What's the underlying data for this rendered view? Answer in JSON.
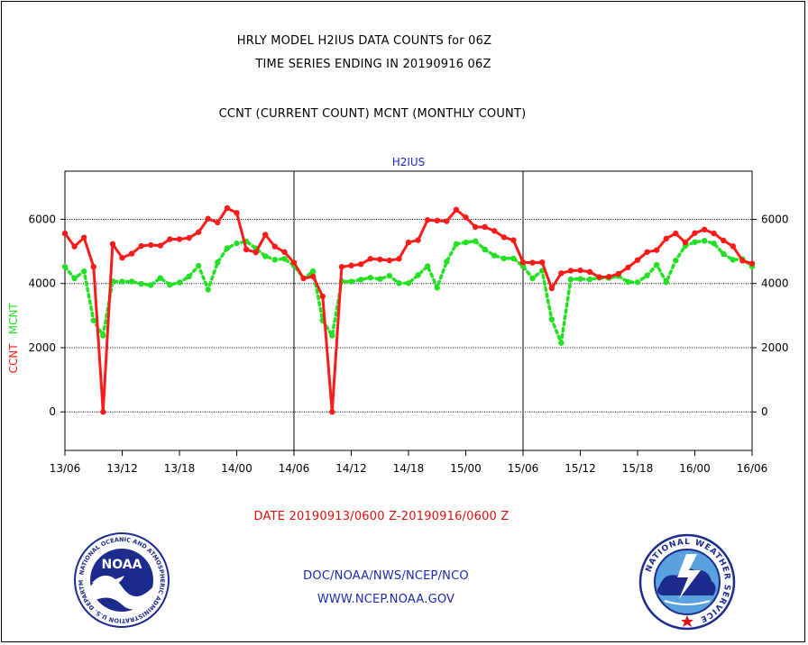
{
  "header": {
    "title": "HRLY MODEL H2IUS DATA COUNTS for 06Z",
    "subtitle": "TIME SERIES ENDING IN 20190916 06Z",
    "legend_text": "CCNT (CURRENT COUNT) MCNT (MONTHLY COUNT)"
  },
  "footer": {
    "date_range": "DATE 20190913/0600 Z-20190916/0600 Z",
    "agency": "DOC/NOAA/NWS/NCEP/NCO",
    "website": "WWW.NCEP.NOAA.GOV"
  },
  "logos": {
    "noaa_label": "NOAA",
    "noaa_ring_text": "NATIONAL OCEANIC AND ATMOSPHERIC ADMINISTRATION U.S. DEPARTMENT OF COMMERCE",
    "nws_ring_text": "NATIONAL WEATHER SERVICE"
  },
  "colors": {
    "ccnt": "#ff1a1a",
    "mcnt": "#22e022",
    "axis": "#000000",
    "title_blue": "#1a2ab8"
  },
  "chart_data": {
    "type": "line",
    "title": "H2IUS",
    "ylabel_ccnt": "CCNT",
    "ylabel_mcnt": "MCNT",
    "xlabel": "",
    "x_tick_labels": [
      "13/06",
      "13/12",
      "13/18",
      "14/00",
      "14/06",
      "14/12",
      "14/18",
      "15/00",
      "15/06",
      "15/12",
      "15/18",
      "16/00",
      "16/06"
    ],
    "y_ticks": [
      0,
      2000,
      4000,
      6000
    ],
    "ylim": [
      -1200,
      7500
    ],
    "x_range_hours": [
      0,
      72
    ],
    "grid": "horizontal",
    "series": [
      {
        "name": "CCNT",
        "style": "solid",
        "values": [
          [
            0,
            5560
          ],
          [
            1,
            5150
          ],
          [
            2,
            5430
          ],
          [
            3,
            4520
          ],
          [
            4,
            0
          ],
          [
            5,
            5230
          ],
          [
            6,
            4800
          ],
          [
            7,
            4930
          ],
          [
            8,
            5170
          ],
          [
            9,
            5200
          ],
          [
            10,
            5180
          ],
          [
            11,
            5380
          ],
          [
            12,
            5380
          ],
          [
            13,
            5420
          ],
          [
            14,
            5600
          ],
          [
            15,
            6020
          ],
          [
            16,
            5900
          ],
          [
            17,
            6350
          ],
          [
            18,
            6200
          ],
          [
            19,
            5060
          ],
          [
            20,
            4970
          ],
          [
            21,
            5520
          ],
          [
            22,
            5150
          ],
          [
            23,
            4980
          ],
          [
            24,
            4650
          ],
          [
            25,
            4160
          ],
          [
            26,
            4220
          ],
          [
            27,
            3600
          ],
          [
            28,
            0
          ],
          [
            29,
            4520
          ],
          [
            30,
            4560
          ],
          [
            31,
            4600
          ],
          [
            32,
            4770
          ],
          [
            33,
            4750
          ],
          [
            34,
            4720
          ],
          [
            35,
            4770
          ],
          [
            36,
            5280
          ],
          [
            37,
            5350
          ],
          [
            38,
            5980
          ],
          [
            39,
            5960
          ],
          [
            40,
            5940
          ],
          [
            41,
            6300
          ],
          [
            42,
            6060
          ],
          [
            43,
            5760
          ],
          [
            44,
            5760
          ],
          [
            45,
            5640
          ],
          [
            46,
            5440
          ],
          [
            47,
            5350
          ],
          [
            48,
            4660
          ],
          [
            49,
            4650
          ],
          [
            50,
            4660
          ],
          [
            51,
            3850
          ],
          [
            52,
            4320
          ],
          [
            53,
            4400
          ],
          [
            54,
            4410
          ],
          [
            55,
            4360
          ],
          [
            56,
            4200
          ],
          [
            57,
            4210
          ],
          [
            58,
            4300
          ],
          [
            59,
            4500
          ],
          [
            60,
            4730
          ],
          [
            61,
            4980
          ],
          [
            62,
            5040
          ],
          [
            63,
            5400
          ],
          [
            64,
            5560
          ],
          [
            65,
            5280
          ],
          [
            66,
            5570
          ],
          [
            67,
            5680
          ],
          [
            68,
            5560
          ],
          [
            69,
            5340
          ],
          [
            70,
            5160
          ],
          [
            71,
            4710
          ],
          [
            72,
            4620
          ]
        ]
      },
      {
        "name": "MCNT",
        "style": "dotted",
        "values": [
          [
            0,
            4520
          ],
          [
            1,
            4160
          ],
          [
            2,
            4380
          ],
          [
            3,
            2850
          ],
          [
            4,
            2380
          ],
          [
            5,
            4070
          ],
          [
            6,
            4060
          ],
          [
            7,
            4060
          ],
          [
            8,
            3990
          ],
          [
            9,
            3950
          ],
          [
            10,
            4170
          ],
          [
            11,
            3960
          ],
          [
            12,
            4030
          ],
          [
            13,
            4220
          ],
          [
            14,
            4550
          ],
          [
            15,
            3810
          ],
          [
            16,
            4660
          ],
          [
            17,
            5100
          ],
          [
            18,
            5250
          ],
          [
            19,
            5310
          ],
          [
            20,
            5100
          ],
          [
            21,
            4850
          ],
          [
            22,
            4740
          ],
          [
            23,
            4770
          ],
          [
            24,
            4560
          ],
          [
            25,
            4160
          ],
          [
            26,
            4380
          ],
          [
            27,
            2850
          ],
          [
            28,
            2380
          ],
          [
            29,
            4070
          ],
          [
            30,
            4060
          ],
          [
            31,
            4120
          ],
          [
            32,
            4180
          ],
          [
            33,
            4140
          ],
          [
            34,
            4240
          ],
          [
            35,
            4010
          ],
          [
            36,
            4010
          ],
          [
            37,
            4260
          ],
          [
            38,
            4540
          ],
          [
            39,
            3870
          ],
          [
            40,
            4680
          ],
          [
            41,
            5230
          ],
          [
            42,
            5280
          ],
          [
            43,
            5320
          ],
          [
            44,
            5060
          ],
          [
            45,
            4870
          ],
          [
            46,
            4780
          ],
          [
            47,
            4780
          ],
          [
            48,
            4540
          ],
          [
            49,
            4160
          ],
          [
            50,
            4400
          ],
          [
            51,
            2880
          ],
          [
            52,
            2150
          ],
          [
            53,
            4130
          ],
          [
            54,
            4140
          ],
          [
            55,
            4130
          ],
          [
            56,
            4180
          ],
          [
            57,
            4170
          ],
          [
            58,
            4230
          ],
          [
            59,
            4050
          ],
          [
            60,
            4040
          ],
          [
            61,
            4250
          ],
          [
            62,
            4580
          ],
          [
            63,
            4040
          ],
          [
            64,
            4720
          ],
          [
            65,
            5170
          ],
          [
            66,
            5290
          ],
          [
            67,
            5330
          ],
          [
            68,
            5250
          ],
          [
            69,
            4920
          ],
          [
            70,
            4740
          ],
          [
            71,
            4760
          ],
          [
            72,
            4530
          ]
        ]
      }
    ]
  }
}
